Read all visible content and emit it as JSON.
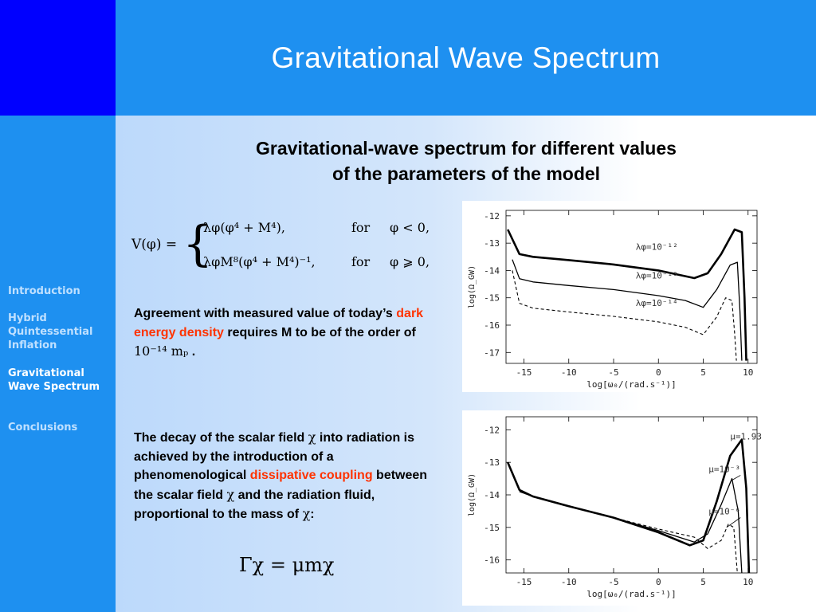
{
  "header": {
    "title": "Gravitational Wave Spectrum",
    "corner_color": "#0000ff",
    "bar_color": "#1e90f0"
  },
  "sidebar": {
    "items": [
      {
        "label": "Introduction",
        "active": false
      },
      {
        "label": "Hybrid Quintessential Inflation",
        "active": false
      },
      {
        "label": "Gravitational Wave Spectrum",
        "active": true
      },
      {
        "label": "Conclusions",
        "active": false
      }
    ]
  },
  "main": {
    "heading_line1": "Gravitational-wave spectrum for different values",
    "heading_line2": "of the parameters of the model",
    "formula_potential": {
      "lhs": "V(φ) =",
      "case1_expr": "λφ(φ⁴ + M⁴),",
      "case1_cond_word": "for",
      "case1_cond": "φ < 0,",
      "case2_expr": "λφM⁸(φ⁴ + M⁴)⁻¹,",
      "case2_cond_word": "for",
      "case2_cond": "φ ⩾ 0,"
    },
    "para1": {
      "part1": "Agreement with measured value of today’s ",
      "highlight": "dark energy density",
      "part2": " requires M to be of the order of ",
      "math": "10⁻¹⁴ mₚ",
      "part3": " ."
    },
    "para2": {
      "part1": "The decay of the scalar field ",
      "chi1": "χ",
      "part2": " into radiation is achieved by the introduction of a phenomenological ",
      "highlight": "dissipative coupling",
      "part3": " between the scalar field ",
      "chi2": "χ",
      "part4": " and the radiation fluid, proportional to the mass of ",
      "chi3": "χ",
      "part5": ":"
    },
    "formula_gamma": "Γχ = μmχ",
    "highlight_color": "#ff3300"
  },
  "chart_data": [
    {
      "type": "line",
      "xlabel": "log[ω₀/(rad.s⁻¹)]",
      "ylabel": "log(Ω_GW)",
      "xlim": [
        -17,
        11
      ],
      "ylim": [
        -17.4,
        -11.8
      ],
      "xticks": [
        "-15",
        "-10",
        "-5",
        "0",
        "5",
        "10"
      ],
      "yticks": [
        "-12",
        "-13",
        "-14",
        "-15",
        "-16",
        "-17"
      ],
      "series": [
        {
          "name": "λφ=10⁻¹²",
          "style": "thick",
          "x": [
            -16.8,
            -15.5,
            -14,
            -10,
            -5,
            0,
            4,
            5.5,
            7,
            8.5,
            9.3,
            9.6,
            9.8
          ],
          "y": [
            -12.5,
            -13.4,
            -13.5,
            -13.62,
            -13.78,
            -14.0,
            -14.28,
            -14.1,
            -13.4,
            -12.5,
            -12.6,
            -15.0,
            -17.3
          ]
        },
        {
          "name": "λφ=10⁻¹³",
          "style": "thin",
          "x": [
            -16.3,
            -15.5,
            -14,
            -10,
            -5,
            0,
            3,
            5,
            6.5,
            8,
            8.8,
            9.1,
            9.3
          ],
          "y": [
            -13.6,
            -14.3,
            -14.42,
            -14.55,
            -14.7,
            -14.92,
            -15.1,
            -15.35,
            -14.7,
            -13.8,
            -13.7,
            -15.5,
            -17.3
          ]
        },
        {
          "name": "λφ=10⁻¹⁴",
          "style": "dashed",
          "x": [
            -16.3,
            -15.5,
            -14,
            -10,
            -5,
            0,
            3,
            5,
            6.5,
            7.5,
            8.2,
            8.5,
            8.7
          ],
          "y": [
            -14.0,
            -15.2,
            -15.38,
            -15.52,
            -15.68,
            -15.88,
            -16.08,
            -16.35,
            -15.7,
            -15.0,
            -15.1,
            -16.3,
            -17.3
          ]
        }
      ],
      "labels": [
        "λφ=10⁻¹²",
        "λφ=10⁻¹³",
        "λφ=10⁻¹⁴"
      ]
    },
    {
      "type": "line",
      "xlabel": "log[ω₀/(rad.s⁻¹)]",
      "ylabel": "log(Ω_GW)",
      "xlim": [
        -17,
        11
      ],
      "ylim": [
        -16.4,
        -11.6
      ],
      "xticks": [
        "-15",
        "-10",
        "-5",
        "0",
        "5",
        "10"
      ],
      "yticks": [
        "-12",
        "-13",
        "-14",
        "-15",
        "-16"
      ],
      "series": [
        {
          "name": "μ=1.93",
          "style": "thick",
          "x": [
            -16.8,
            -15.5,
            -14,
            -10,
            -5,
            0,
            3.5,
            5,
            6.5,
            8,
            9.3,
            9.8,
            10.1
          ],
          "y": [
            -13.0,
            -13.85,
            -14.05,
            -14.35,
            -14.7,
            -15.15,
            -15.55,
            -15.4,
            -14.2,
            -12.8,
            -12.3,
            -13.8,
            -16.4
          ]
        },
        {
          "name": "μ=10⁻³",
          "style": "thin",
          "x": [
            -15.5,
            -14,
            -10,
            -5,
            0,
            4,
            5.5,
            7,
            8.2,
            8.9,
            9.3
          ],
          "y": [
            -13.9,
            -14.05,
            -14.35,
            -14.7,
            -15.1,
            -15.45,
            -15.2,
            -14.3,
            -13.5,
            -14.5,
            -16.4
          ]
        },
        {
          "name": "μ=10⁻⁶",
          "style": "dashed",
          "x": [
            -15.5,
            -14,
            -10,
            -5,
            0,
            4,
            5.5,
            7,
            7.8,
            8.4,
            8.8
          ],
          "y": [
            -13.9,
            -14.05,
            -14.35,
            -14.7,
            -15.05,
            -15.3,
            -15.65,
            -15.4,
            -14.9,
            -15.0,
            -16.4
          ]
        }
      ],
      "labels": [
        "μ=1.93",
        "μ=10⁻³",
        "μ=10⁻⁶"
      ]
    }
  ]
}
